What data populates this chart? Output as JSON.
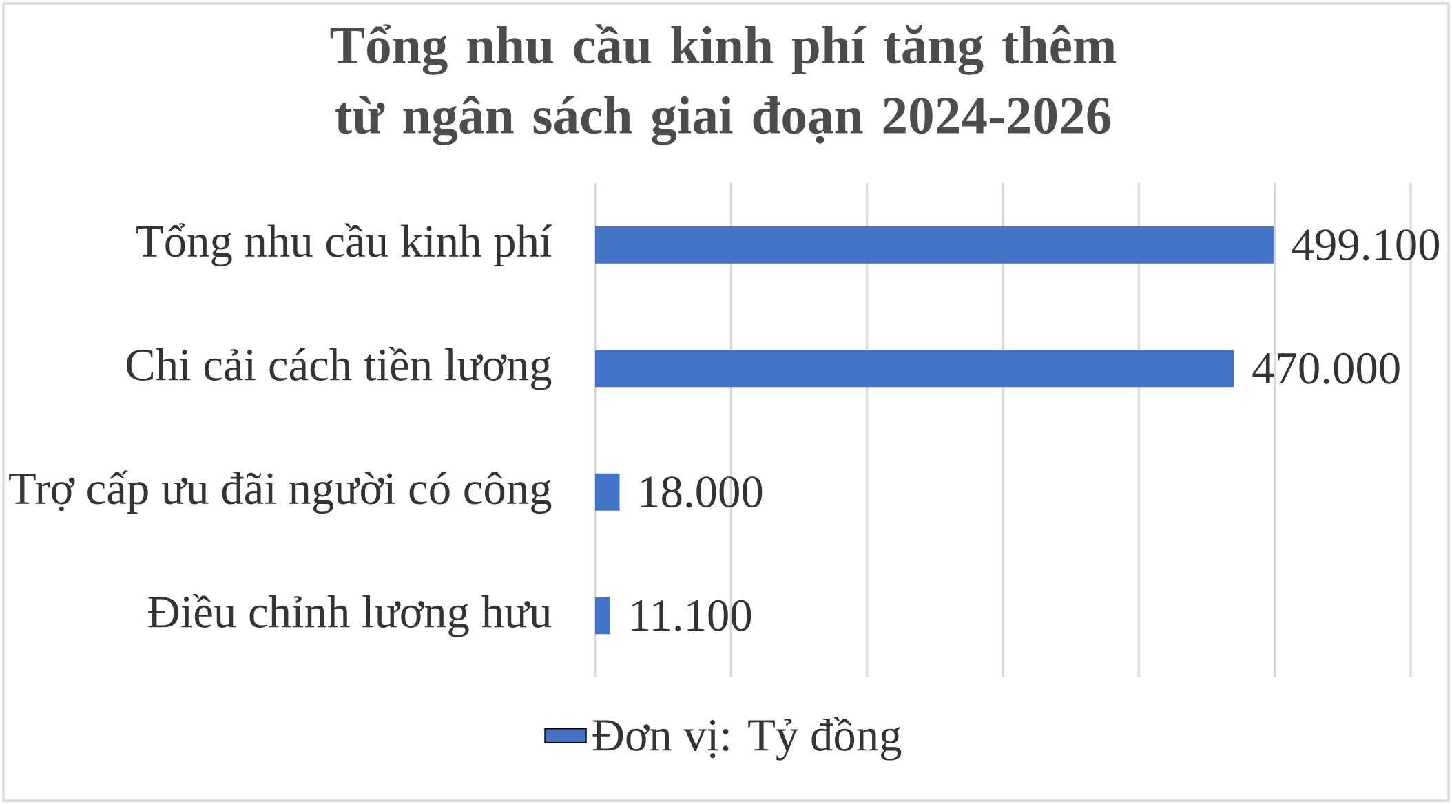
{
  "chart_data": {
    "type": "bar",
    "orientation": "horizontal",
    "title": "Tổng nhu cầu kinh phí tăng thêm từ ngân sách giai đoạn 2024-2026",
    "categories": [
      "Tổng nhu cầu kinh phí",
      "Chi cải cách tiền lương",
      "Trợ cấp ưu đãi người có công",
      "Điều chỉnh lương hưu"
    ],
    "series": [
      {
        "name": "Đơn vị: Tỷ đồng",
        "color": "#4472c4",
        "values": [
          499100,
          470000,
          18000,
          11100
        ],
        "value_labels": [
          "499.100",
          "470.000",
          "18.000",
          "11.100"
        ]
      }
    ],
    "xlim": [
      0,
      600000
    ],
    "xticks": [
      {
        "value": 0,
        "label": null
      },
      {
        "value": 100000,
        "label": null
      },
      {
        "value": 200000,
        "label": null
      },
      {
        "value": 300000,
        "label": null
      },
      {
        "value": 400000,
        "label": null
      },
      {
        "value": 500000,
        "label": null
      },
      {
        "value": 600000,
        "label": null
      }
    ],
    "grid": "x",
    "legend": "bottom",
    "tick_labels": "y"
  }
}
